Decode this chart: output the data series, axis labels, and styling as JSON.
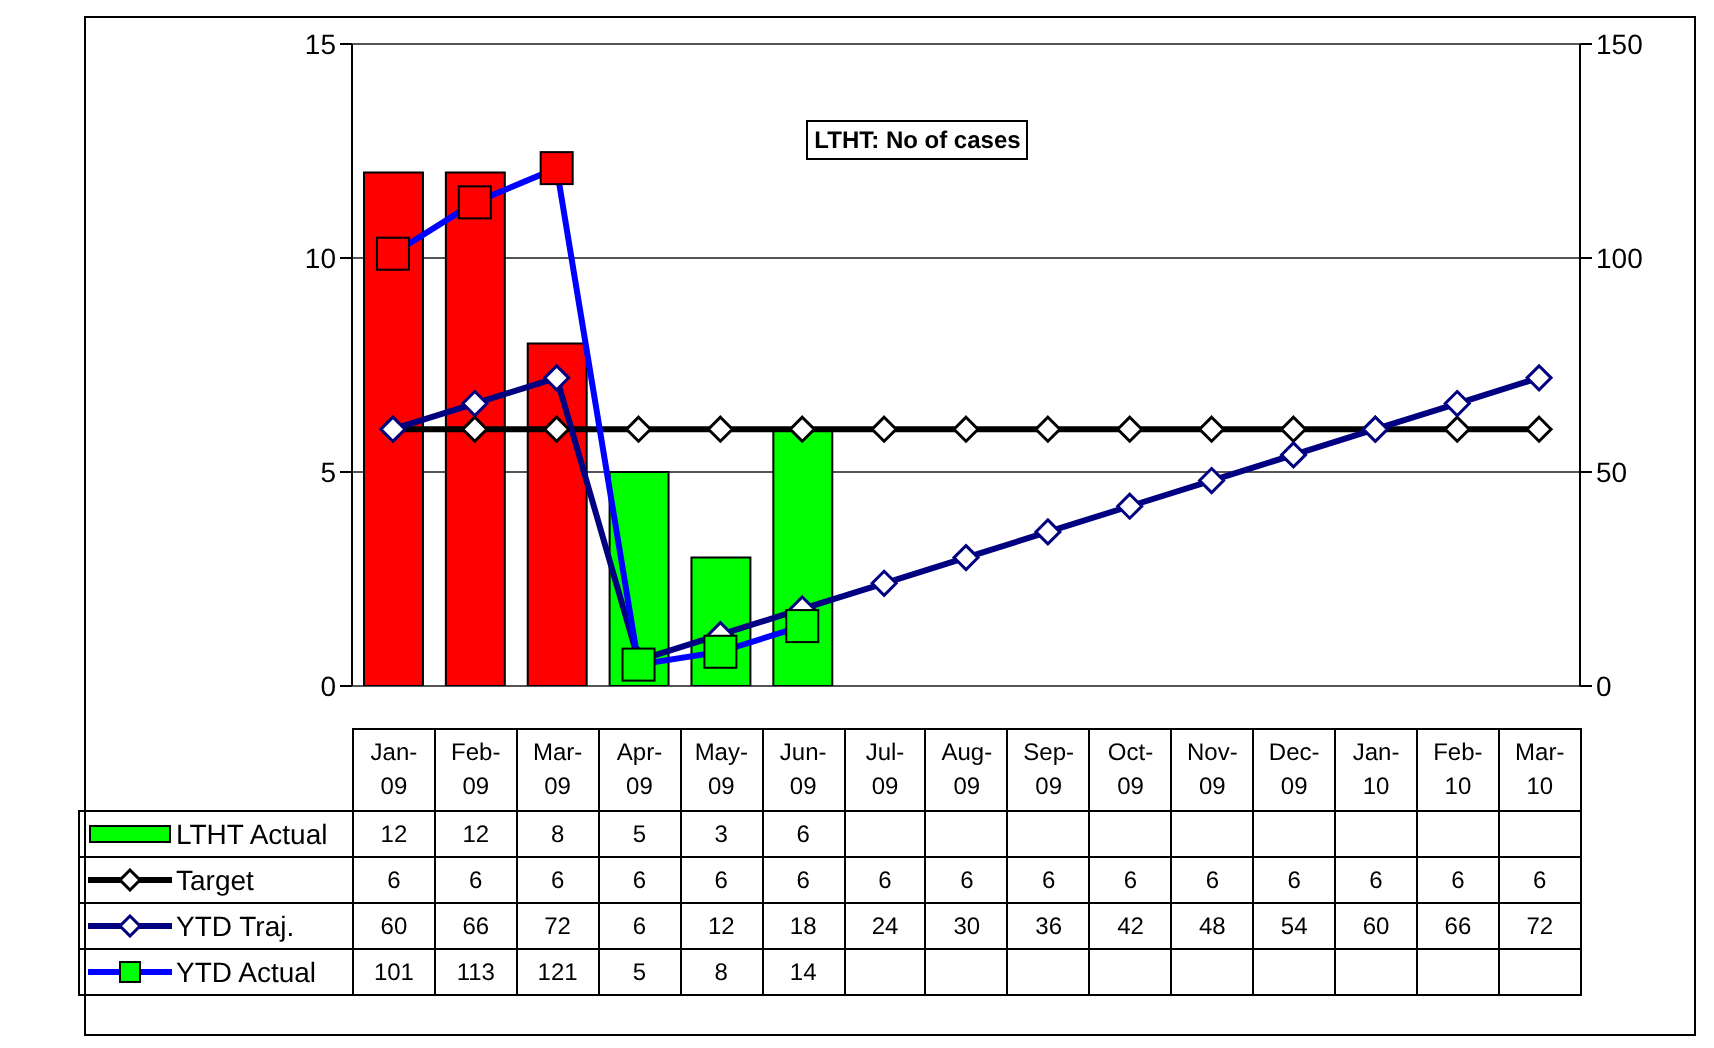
{
  "chart_data": {
    "type": "bar",
    "title": "LTHT: No of cases",
    "categories": [
      "Jan-09",
      "Feb-09",
      "Mar-09",
      "Apr-09",
      "May-09",
      "Jun-09",
      "Jul-09",
      "Aug-09",
      "Sep-09",
      "Oct-09",
      "Nov-09",
      "Dec-09",
      "Jan-10",
      "Feb-10",
      "Mar-10"
    ],
    "series": [
      {
        "name": "LTHT Actual",
        "color": "#00ff00",
        "colors": [
          "#ff0000",
          "#ff0000",
          "#ff0000",
          "#00ff00",
          "#00ff00",
          "#00ff00",
          null,
          null,
          null,
          null,
          null,
          null,
          null,
          null,
          null
        ],
        "values": [
          12,
          12,
          8,
          5,
          3,
          6,
          null,
          null,
          null,
          null,
          null,
          null,
          null,
          null,
          null
        ]
      },
      {
        "name": "Target",
        "type": "line",
        "color": "#000000",
        "marker": "diamond",
        "values": [
          6,
          6,
          6,
          6,
          6,
          6,
          6,
          6,
          6,
          6,
          6,
          6,
          6,
          6,
          6
        ]
      },
      {
        "name": "YTD Traj.",
        "type": "line",
        "color": "#000080",
        "marker": "diamond",
        "axis": "y2",
        "values": [
          60,
          66,
          72,
          6,
          12,
          18,
          24,
          30,
          36,
          42,
          48,
          54,
          60,
          66,
          72
        ]
      },
      {
        "name": "YTD Actual",
        "type": "line",
        "color": "#0000ff",
        "marker": "square",
        "axis": "y2",
        "colors": [
          "#ff0000",
          "#ff0000",
          "#ff0000",
          "#00ff00",
          "#00ff00",
          "#00ff00",
          null,
          null,
          null,
          null,
          null,
          null,
          null,
          null,
          null
        ],
        "values": [
          101,
          113,
          121,
          5,
          8,
          14,
          null,
          null,
          null,
          null,
          null,
          null,
          null,
          null,
          null
        ]
      }
    ],
    "ylim": [
      0,
      15
    ],
    "yticks": [
      0,
      5,
      10,
      15
    ],
    "y2lim": [
      0,
      150
    ],
    "y2ticks": [
      0,
      50,
      100,
      150
    ],
    "grid": "y",
    "legend": "bottom left",
    "data_labels": true
  }
}
